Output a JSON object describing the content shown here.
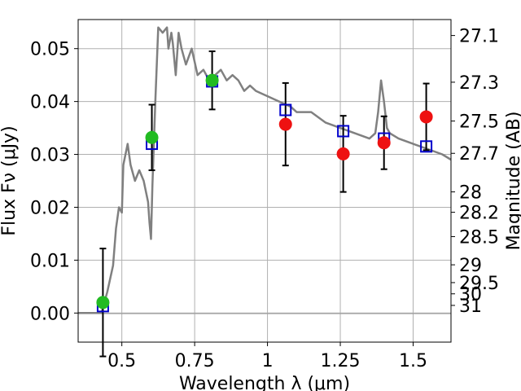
{
  "chart_data": {
    "type": "scatter",
    "xlabel": "Wavelength  λ (μm)",
    "ylabel": "Flux  Fν  (μJy)",
    "y2label": "Magnitude (AB)",
    "xlim": [
      0.35,
      1.63
    ],
    "ylim": [
      -0.0055,
      0.0555
    ],
    "grid": true,
    "x_ticks": [
      0.5,
      0.75,
      1.0,
      1.25,
      1.5
    ],
    "x_tick_labels": [
      "0.5",
      "0.75",
      "1",
      "1.25",
      "1.5"
    ],
    "y_ticks": [
      0.0,
      0.01,
      0.02,
      0.03,
      0.04,
      0.05
    ],
    "y_tick_labels": [
      "0.00",
      "0.01",
      "0.02",
      "0.03",
      "0.04",
      "0.05"
    ],
    "mag_ticks": [
      27.1,
      27.3,
      27.5,
      27.7,
      28,
      28.2,
      28.5,
      29,
      29.5,
      30,
      31
    ],
    "mag_tick_labels": [
      "27.1",
      "27.3",
      "27.5",
      "27.7",
      "28",
      "28.2",
      "28.5",
      "29",
      "29.5",
      "30",
      "31"
    ],
    "colors": {
      "model": "#808080",
      "green": "#22bb22",
      "red": "#ee1111",
      "square": "#0000cc",
      "errorbar": "#000000",
      "grid": "#b0b0b0"
    },
    "series": [
      {
        "marker": "circle",
        "color": "green",
        "x": [
          0.435,
          0.603,
          0.81
        ],
        "y": [
          0.002,
          0.0332,
          0.044
        ],
        "yerr": [
          0.0102,
          0.0062,
          0.0055
        ]
      },
      {
        "marker": "circle",
        "color": "red",
        "x": [
          1.062,
          1.26,
          1.4,
          1.545
        ],
        "y": [
          0.0357,
          0.0301,
          0.0322,
          0.0371
        ],
        "yerr": [
          0.0078,
          0.0072,
          0.005,
          0.0063
        ]
      },
      {
        "marker": "open-square",
        "color": "square",
        "x": [
          0.435,
          0.603,
          0.81,
          1.062,
          1.26,
          1.4,
          1.545
        ],
        "y": [
          0.0013,
          0.032,
          0.0438,
          0.0384,
          0.0344,
          0.033,
          0.0315
        ]
      },
      {
        "marker": "line",
        "color": "model",
        "x": [
          0.35,
          0.43,
          0.45,
          0.47,
          0.48,
          0.49,
          0.5,
          0.505,
          0.52,
          0.53,
          0.545,
          0.56,
          0.575,
          0.59,
          0.595,
          0.6,
          0.605,
          0.615,
          0.625,
          0.64,
          0.655,
          0.66,
          0.67,
          0.675,
          0.685,
          0.695,
          0.705,
          0.72,
          0.74,
          0.76,
          0.78,
          0.8,
          0.82,
          0.84,
          0.86,
          0.88,
          0.9,
          0.92,
          0.94,
          0.96,
          1.0,
          1.04,
          1.08,
          1.1,
          1.15,
          1.2,
          1.25,
          1.3,
          1.35,
          1.37,
          1.38,
          1.39,
          1.4,
          1.41,
          1.42,
          1.45,
          1.5,
          1.55,
          1.6,
          1.63
        ],
        "y": [
          0.0,
          0.0,
          0.004,
          0.009,
          0.016,
          0.02,
          0.019,
          0.028,
          0.032,
          0.028,
          0.025,
          0.027,
          0.025,
          0.021,
          0.017,
          0.014,
          0.024,
          0.04,
          0.054,
          0.053,
          0.054,
          0.05,
          0.053,
          0.051,
          0.045,
          0.053,
          0.05,
          0.047,
          0.05,
          0.045,
          0.046,
          0.044,
          0.045,
          0.046,
          0.044,
          0.045,
          0.044,
          0.042,
          0.043,
          0.042,
          0.041,
          0.04,
          0.039,
          0.038,
          0.038,
          0.036,
          0.035,
          0.034,
          0.033,
          0.034,
          0.038,
          0.044,
          0.04,
          0.035,
          0.034,
          0.033,
          0.032,
          0.031,
          0.03,
          0.029
        ]
      }
    ]
  }
}
